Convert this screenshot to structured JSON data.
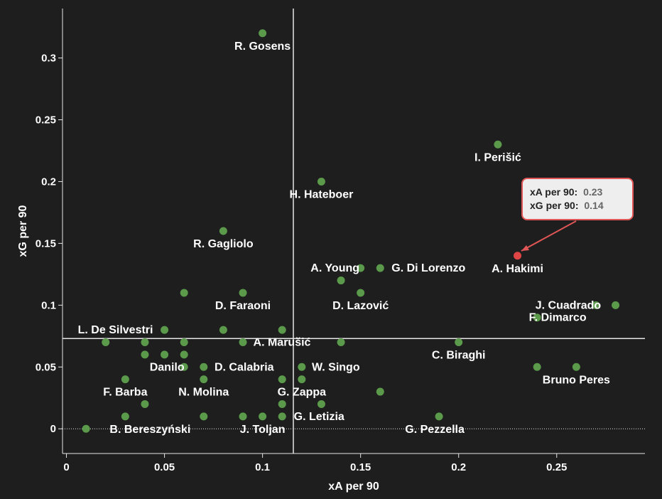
{
  "chart_data": {
    "type": "scatter",
    "xlabel": "xA per 90",
    "ylabel": "xG per 90",
    "xlim": [
      -0.002,
      0.295
    ],
    "ylim": [
      -0.02,
      0.34
    ],
    "xticks": [
      "0",
      "0.05",
      "0.1",
      "0.15",
      "0.2",
      "0.25"
    ],
    "yticks": [
      "0",
      "0.05",
      "0.1",
      "0.15",
      "0.2",
      "0.25",
      "0.3"
    ],
    "average_lines": {
      "x": 0.1157,
      "y": 0.073
    },
    "zero_line_y": 0,
    "colors": {
      "point": "#5a9a4a",
      "highlight": "#e04545",
      "background": "#1e1e1e",
      "lines": "#e6e6e6"
    },
    "points": [
      {
        "x": 0.1,
        "y": 0.32,
        "label": "R. Gosens"
      },
      {
        "x": 0.22,
        "y": 0.23,
        "label": "I. Perišić"
      },
      {
        "x": 0.13,
        "y": 0.2,
        "label": "H. Hateboer"
      },
      {
        "x": 0.08,
        "y": 0.16,
        "label": "R. Gagliolo"
      },
      {
        "x": 0.23,
        "y": 0.14,
        "label": "A. Hakimi",
        "highlight": true
      },
      {
        "x": 0.15,
        "y": 0.13,
        "label": "A. Young"
      },
      {
        "x": 0.16,
        "y": 0.13,
        "label": "G. Di Lorenzo"
      },
      {
        "x": 0.14,
        "y": 0.12
      },
      {
        "x": 0.15,
        "y": 0.11,
        "label": "D. Lazović"
      },
      {
        "x": 0.06,
        "y": 0.11
      },
      {
        "x": 0.09,
        "y": 0.11,
        "label": "D. Faraoni"
      },
      {
        "x": 0.27,
        "y": 0.1,
        "label": "J. Cuadrado"
      },
      {
        "x": 0.28,
        "y": 0.1
      },
      {
        "x": 0.24,
        "y": 0.09,
        "label": "F. Dimarco"
      },
      {
        "x": 0.05,
        "y": 0.08,
        "label": "L. De Silvestri"
      },
      {
        "x": 0.08,
        "y": 0.08
      },
      {
        "x": 0.11,
        "y": 0.08
      },
      {
        "x": 0.02,
        "y": 0.07
      },
      {
        "x": 0.04,
        "y": 0.07
      },
      {
        "x": 0.06,
        "y": 0.07
      },
      {
        "x": 0.09,
        "y": 0.07,
        "label": "A. Marušić"
      },
      {
        "x": 0.14,
        "y": 0.07
      },
      {
        "x": 0.2,
        "y": 0.07,
        "label": "C. Biraghi"
      },
      {
        "x": 0.04,
        "y": 0.06
      },
      {
        "x": 0.05,
        "y": 0.06
      },
      {
        "x": 0.06,
        "y": 0.06
      },
      {
        "x": 0.06,
        "y": 0.05,
        "label": "Danilo"
      },
      {
        "x": 0.07,
        "y": 0.05,
        "label": "D. Calabria"
      },
      {
        "x": 0.12,
        "y": 0.05,
        "label": "W. Singo"
      },
      {
        "x": 0.24,
        "y": 0.05
      },
      {
        "x": 0.26,
        "y": 0.05,
        "label": "Bruno Peres"
      },
      {
        "x": 0.03,
        "y": 0.04,
        "label": "F. Barba"
      },
      {
        "x": 0.07,
        "y": 0.04,
        "label": "N. Molina"
      },
      {
        "x": 0.11,
        "y": 0.04
      },
      {
        "x": 0.12,
        "y": 0.04,
        "label": "G. Zappa"
      },
      {
        "x": 0.16,
        "y": 0.03
      },
      {
        "x": 0.04,
        "y": 0.02
      },
      {
        "x": 0.11,
        "y": 0.02
      },
      {
        "x": 0.13,
        "y": 0.02
      },
      {
        "x": 0.03,
        "y": 0.01,
        "label": "B. Bereszyński"
      },
      {
        "x": 0.07,
        "y": 0.01
      },
      {
        "x": 0.09,
        "y": 0.01
      },
      {
        "x": 0.1,
        "y": 0.01,
        "label": "J. Toljan"
      },
      {
        "x": 0.11,
        "y": 0.01,
        "label": "G. Letizia"
      },
      {
        "x": 0.19,
        "y": 0.01,
        "label": "G. Pezzella"
      },
      {
        "x": 0.01,
        "y": 0.0
      }
    ]
  },
  "tooltip": {
    "line1_label": "xA per 90:",
    "line1_value": "0.23",
    "line2_label": "xG per 90:",
    "line2_value": "0.14"
  }
}
